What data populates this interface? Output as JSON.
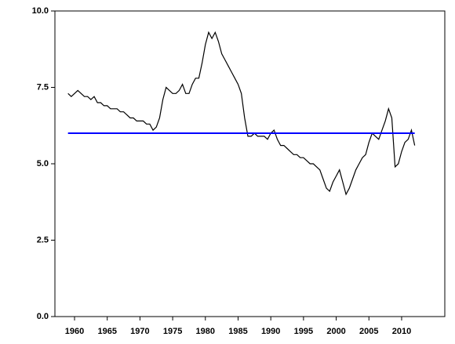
{
  "chart_data": {
    "type": "line",
    "xlim": [
      1957,
      2016.6
    ],
    "ylim": [
      0,
      10
    ],
    "xticks": [
      1960,
      1965,
      1970,
      1975,
      1980,
      1985,
      1990,
      1995,
      2000,
      2005,
      2010
    ],
    "yticks": [
      {
        "value": 0,
        "label": "0.0"
      },
      2.5,
      {
        "value": 5,
        "label": "5.0"
      },
      7.5,
      {
        "value": 10,
        "label": "10.0"
      }
    ],
    "series": [
      {
        "color": "#000000",
        "x": [
          1959,
          1959.5,
          1960,
          1960.5,
          1961,
          1961.5,
          1962,
          1962.5,
          1963,
          1963.5,
          1964,
          1964.5,
          1965,
          1965.5,
          1966,
          1966.5,
          1967,
          1967.5,
          1968,
          1968.5,
          1969,
          1969.5,
          1970,
          1970.5,
          1971,
          1971.5,
          1972,
          1972.5,
          1973,
          1973.5,
          1974,
          1974.5,
          1975,
          1975.5,
          1976,
          1976.5,
          1977,
          1977.5,
          1978,
          1978.5,
          1979,
          1979.5,
          1980,
          1980.5,
          1981,
          1981.5,
          1982,
          1982.5,
          1983,
          1983.5,
          1984,
          1984.5,
          1985,
          1985.5,
          1986,
          1986.5,
          1987,
          1987.5,
          1988,
          1988.5,
          1989,
          1989.5,
          1990,
          1990.5,
          1991,
          1991.5,
          1992,
          1992.5,
          1993,
          1993.5,
          1994,
          1994.5,
          1995,
          1995.5,
          1996,
          1996.5,
          1997,
          1997.5,
          1998,
          1998.5,
          1999,
          1999.5,
          2000,
          2000.5,
          2001,
          2001.5,
          2002,
          2002.5,
          2003,
          2003.5,
          2004,
          2004.5,
          2005,
          2005.5,
          2006,
          2006.5,
          2007,
          2007.5,
          2008,
          2008.5,
          2009,
          2009.5,
          2010,
          2010.5,
          2011,
          2011.5,
          2012
        ],
        "values": [
          7.3,
          7.2,
          7.3,
          7.4,
          7.3,
          7.2,
          7.2,
          7.1,
          7.2,
          7.0,
          7.0,
          6.9,
          6.9,
          6.8,
          6.8,
          6.8,
          6.7,
          6.7,
          6.6,
          6.5,
          6.5,
          6.4,
          6.4,
          6.4,
          6.3,
          6.3,
          6.1,
          6.2,
          6.5,
          7.1,
          7.5,
          7.4,
          7.3,
          7.3,
          7.4,
          7.6,
          7.3,
          7.3,
          7.6,
          7.8,
          7.8,
          8.3,
          8.9,
          9.3,
          9.1,
          9.3,
          9.0,
          8.6,
          8.4,
          8.2,
          8.0,
          7.8,
          7.6,
          7.3,
          6.5,
          5.9,
          5.9,
          6.0,
          5.9,
          5.9,
          5.9,
          5.8,
          6.0,
          6.1,
          5.8,
          5.6,
          5.6,
          5.5,
          5.4,
          5.3,
          5.3,
          5.2,
          5.2,
          5.1,
          5.0,
          5.0,
          4.9,
          4.8,
          4.5,
          4.2,
          4.1,
          4.4,
          4.6,
          4.8,
          4.4,
          4.0,
          4.2,
          4.5,
          4.8,
          5.0,
          5.2,
          5.3,
          5.7,
          6.0,
          5.9,
          5.8,
          6.1,
          6.4,
          6.8,
          6.5,
          4.9,
          5.0,
          5.4,
          5.7,
          5.8,
          6.1,
          5.6
        ]
      },
      {
        "color": "#0000ff",
        "x": [
          1959,
          2012
        ],
        "values": [
          6,
          6
        ]
      }
    ]
  }
}
